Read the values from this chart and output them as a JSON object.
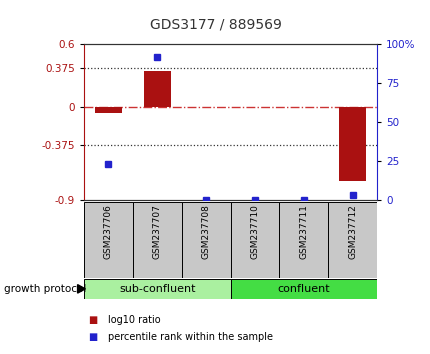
{
  "title": "GDS3177 / 889569",
  "samples": [
    "GSM237706",
    "GSM237707",
    "GSM237708",
    "GSM237710",
    "GSM237711",
    "GSM237712"
  ],
  "log10_ratio": [
    -0.06,
    0.34,
    0.0,
    0.0,
    0.0,
    -0.72
  ],
  "percentile_rank": [
    23,
    92,
    0,
    0,
    0,
    3
  ],
  "ylim_left": [
    -0.9,
    0.6
  ],
  "ylim_right": [
    0,
    100
  ],
  "yticks_left": [
    -0.9,
    -0.375,
    0,
    0.375,
    0.6
  ],
  "ytick_labels_left": [
    "-0.9",
    "-0.375",
    "0",
    "0.375",
    "0.6"
  ],
  "yticks_right": [
    0,
    25,
    50,
    75,
    100
  ],
  "ytick_labels_right": [
    "0",
    "25",
    "50",
    "75",
    "100%"
  ],
  "hlines": [
    0.375,
    -0.375
  ],
  "bar_color": "#aa1111",
  "dot_color": "#2222cc",
  "zero_line_color": "#cc3333",
  "hline_color": "#333333",
  "sub_confluent_color": "#aaf0a0",
  "confluent_color": "#44dd44",
  "group_label": "growth protocol",
  "legend_items": [
    {
      "label": "log10 ratio",
      "color": "#aa1111"
    },
    {
      "label": "percentile rank within the sample",
      "color": "#2222cc"
    }
  ],
  "bar_width": 0.55,
  "sample_bg_color": "#c8c8c8",
  "title_color": "#333333"
}
